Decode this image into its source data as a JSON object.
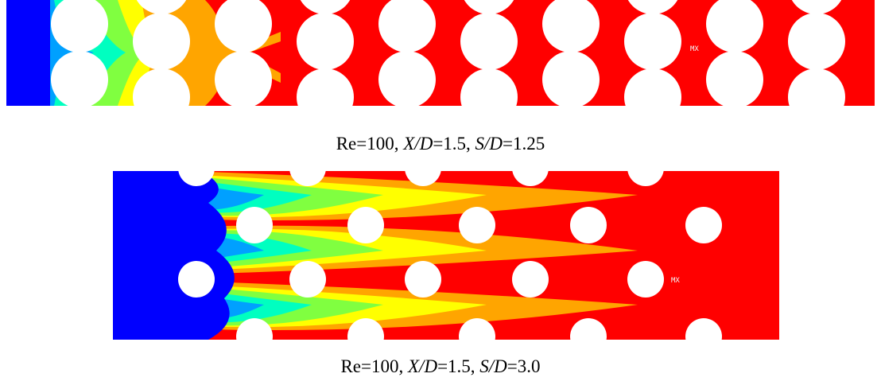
{
  "panels": [
    {
      "label": "MX",
      "caption": [
        "Re=100, ",
        "X/D",
        "=1.5, ",
        "S/D",
        "=1.25"
      ]
    },
    {
      "label": "MX",
      "caption": [
        "Re=100, ",
        "X/D",
        "=1.5, ",
        "S/D",
        "=3.0"
      ]
    }
  ]
}
